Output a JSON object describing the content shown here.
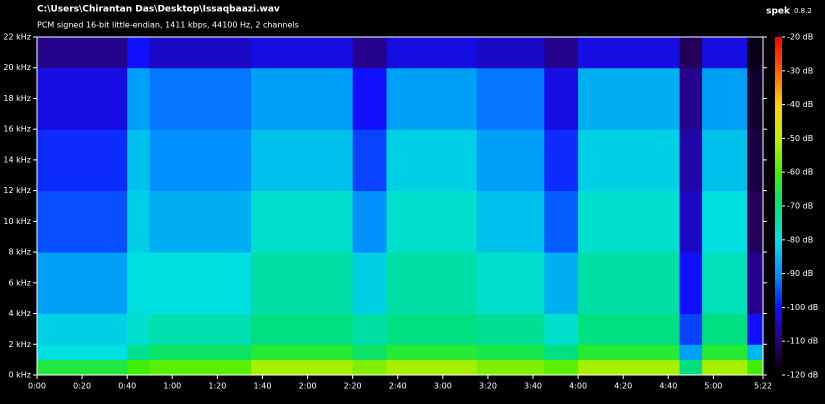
{
  "app": {
    "name": "spek",
    "version": "0.8.2"
  },
  "chart_data": {
    "type": "spectrogram",
    "title": "C:\\Users\\Chirantan Das\\Desktop\\Issaqbaazi.wav",
    "subtitle": "PCM signed 16-bit little-endian, 1411 kbps, 44100 Hz, 2 channels",
    "xlim": [
      0,
      322
    ],
    "xticks": [
      {
        "value": 0,
        "label": "0:00"
      },
      {
        "value": 20,
        "label": "0:20"
      },
      {
        "value": 40,
        "label": "0:40"
      },
      {
        "value": 60,
        "label": "1:00"
      },
      {
        "value": 80,
        "label": "1:20"
      },
      {
        "value": 100,
        "label": "1:40"
      },
      {
        "value": 120,
        "label": "2:00"
      },
      {
        "value": 140,
        "label": "2:20"
      },
      {
        "value": 160,
        "label": "2:40"
      },
      {
        "value": 180,
        "label": "3:00"
      },
      {
        "value": 200,
        "label": "3:20"
      },
      {
        "value": 220,
        "label": "3:40"
      },
      {
        "value": 240,
        "label": "4:00"
      },
      {
        "value": 260,
        "label": "4:20"
      },
      {
        "value": 280,
        "label": "4:40"
      },
      {
        "value": 300,
        "label": "5:00"
      },
      {
        "value": 322,
        "label": "5:22"
      }
    ],
    "ylim": [
      0,
      22
    ],
    "yticks": [
      {
        "value": 0,
        "label": "0 kHz"
      },
      {
        "value": 2,
        "label": "2 kHz"
      },
      {
        "value": 4,
        "label": "4 kHz"
      },
      {
        "value": 6,
        "label": "6 kHz"
      },
      {
        "value": 8,
        "label": "8 kHz"
      },
      {
        "value": 10,
        "label": "10 kHz"
      },
      {
        "value": 12,
        "label": "12 kHz"
      },
      {
        "value": 14,
        "label": "14 kHz"
      },
      {
        "value": 16,
        "label": "16 kHz"
      },
      {
        "value": 18,
        "label": "18 kHz"
      },
      {
        "value": 20,
        "label": "20 kHz"
      },
      {
        "value": 22,
        "label": "22 kHz"
      }
    ],
    "zlim": [
      -120,
      -20
    ],
    "zticks": [
      {
        "value": -20,
        "label": "-20 dB"
      },
      {
        "value": -30,
        "label": "-30 dB"
      },
      {
        "value": -40,
        "label": "-40 dB"
      },
      {
        "value": -50,
        "label": "-50 dB"
      },
      {
        "value": -60,
        "label": "-60 dB"
      },
      {
        "value": -70,
        "label": "-70 dB"
      },
      {
        "value": -80,
        "label": "-80 dB"
      },
      {
        "value": -90,
        "label": "-90 dB"
      },
      {
        "value": -100,
        "label": "-100 dB"
      },
      {
        "value": -110,
        "label": "-110 dB"
      },
      {
        "value": -120,
        "label": "-120 dB"
      }
    ],
    "colorscale": [
      "#000000",
      "#2a0070",
      "#1010ff",
      "#0090ff",
      "#00e0e0",
      "#00e080",
      "#40f000",
      "#c0f000",
      "#ffd000",
      "#ff6000",
      "#ff0000"
    ],
    "time_bins": [
      0,
      40,
      50,
      95,
      140,
      155,
      195,
      225,
      240,
      285,
      295,
      315,
      322
    ],
    "freq_bins": [
      0,
      1,
      2,
      4,
      8,
      12,
      16,
      20,
      22
    ],
    "levels": [
      [
        -65,
        -80,
        -82,
        -88,
        -95,
        -98,
        -102,
        -108
      ],
      [
        -60,
        -72,
        -78,
        -80,
        -82,
        -84,
        -88,
        -100
      ],
      [
        -58,
        -68,
        -75,
        -80,
        -86,
        -90,
        -92,
        -104
      ],
      [
        -52,
        -64,
        -70,
        -74,
        -78,
        -84,
        -88,
        -102
      ],
      [
        -55,
        -68,
        -74,
        -82,
        -90,
        -96,
        -100,
        -108
      ],
      [
        -52,
        -64,
        -70,
        -74,
        -78,
        -82,
        -88,
        -102
      ],
      [
        -55,
        -66,
        -72,
        -78,
        -84,
        -88,
        -92,
        -104
      ],
      [
        -58,
        -70,
        -78,
        -86,
        -94,
        -98,
        -102,
        -108
      ],
      [
        -52,
        -64,
        -70,
        -74,
        -78,
        -82,
        -86,
        -102
      ],
      [
        -70,
        -88,
        -96,
        -100,
        -104,
        -106,
        -108,
        -112
      ],
      [
        -52,
        -64,
        -70,
        -76,
        -80,
        -84,
        -88,
        -102
      ],
      [
        -60,
        -85,
        -100,
        -108,
        -112,
        -114,
        -116,
        -118
      ]
    ]
  }
}
